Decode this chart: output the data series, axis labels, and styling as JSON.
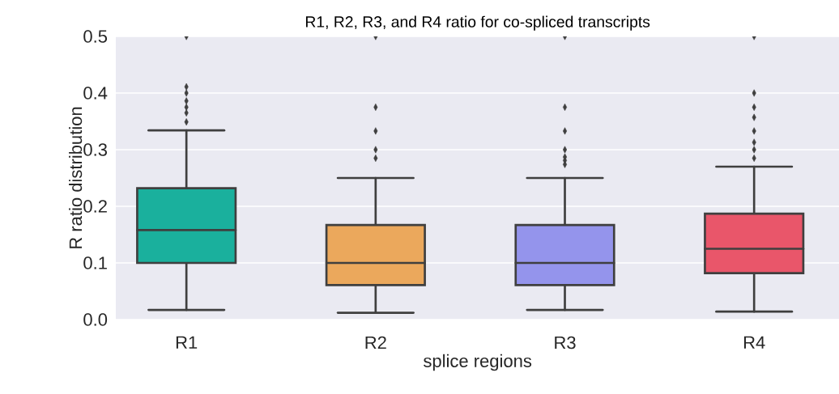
{
  "chart_data": {
    "type": "box",
    "title": "R1, R2, R3, and R4 ratio for co-spliced transcripts",
    "xlabel": "splice regions",
    "ylabel": "R ratio distribution",
    "categories": [
      "R1",
      "R2",
      "R3",
      "R4"
    ],
    "colors": [
      "#1ab09d",
      "#eba85c",
      "#9494ec",
      "#e9566a"
    ],
    "boxes": [
      {
        "low": 0.017,
        "q1": 0.1,
        "median": 0.158,
        "q3": 0.232,
        "high": 0.334,
        "outliers": [
          0.349,
          0.365,
          0.375,
          0.386,
          0.4,
          0.411,
          0.5
        ]
      },
      {
        "low": 0.012,
        "q1": 0.061,
        "median": 0.1,
        "q3": 0.167,
        "high": 0.25,
        "outliers": [
          0.285,
          0.3,
          0.333,
          0.375,
          0.5
        ]
      },
      {
        "low": 0.017,
        "q1": 0.061,
        "median": 0.1,
        "q3": 0.167,
        "high": 0.25,
        "outliers": [
          0.274,
          0.281,
          0.287,
          0.3,
          0.333,
          0.375,
          0.5
        ]
      },
      {
        "low": 0.014,
        "q1": 0.082,
        "median": 0.125,
        "q3": 0.187,
        "high": 0.27,
        "outliers": [
          0.285,
          0.3,
          0.313,
          0.333,
          0.357,
          0.375,
          0.4,
          0.5
        ]
      }
    ],
    "ylim": [
      0,
      0.5
    ],
    "yticks": [
      {
        "value": 0,
        "label": "0.0"
      },
      0.1,
      0.2,
      0.3,
      0.4,
      0.5
    ],
    "grid": "y",
    "marker": "diamond"
  }
}
